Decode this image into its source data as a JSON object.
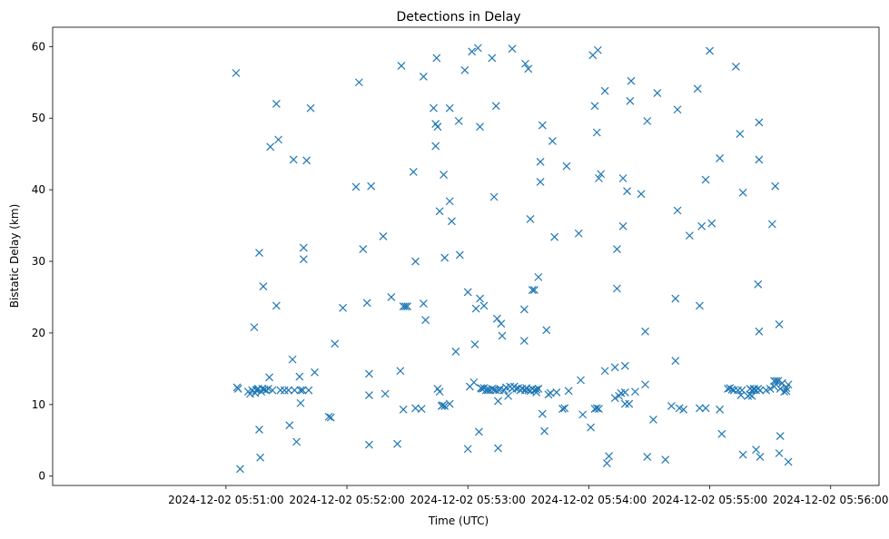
{
  "chart_data": {
    "type": "scatter",
    "title": "Detections in Delay",
    "xlabel": "Time (UTC)",
    "ylabel": "Bistatic Delay (km)",
    "marker": "x",
    "color": "#1f77b4",
    "xlim": [
      -86,
      324
    ],
    "ylim": [
      -1.3,
      62.7
    ],
    "x_unit": "seconds after 2024-12-02 05:51:00",
    "x_ticks": [
      0,
      60,
      120,
      180,
      240,
      300
    ],
    "x_tick_labels": [
      "2024-12-02 05:51:00",
      "2024-12-02 05:52:00",
      "2024-12-02 05:53:00",
      "2024-12-02 05:54:00",
      "2024-12-02 05:55:00",
      "2024-12-02 05:56:00"
    ],
    "y_ticks": [
      0,
      10,
      20,
      30,
      40,
      50,
      60
    ],
    "y_tick_labels": [
      "0",
      "10",
      "20",
      "30",
      "40",
      "50",
      "60"
    ],
    "points": [
      [
        5,
        56.3
      ],
      [
        5.5,
        12.4
      ],
      [
        6,
        12.2
      ],
      [
        7,
        1.0
      ],
      [
        11,
        11.8
      ],
      [
        12,
        11.5
      ],
      [
        13,
        12.0
      ],
      [
        14,
        20.8
      ],
      [
        14.5,
        11.6
      ],
      [
        15,
        12.0
      ],
      [
        15.5,
        12.1
      ],
      [
        16,
        12.2
      ],
      [
        16.5,
        31.2
      ],
      [
        16.5,
        6.5
      ],
      [
        17,
        2.6
      ],
      [
        17.5,
        11.8
      ],
      [
        18,
        12.2
      ],
      [
        18.5,
        26.5
      ],
      [
        19,
        12.1
      ],
      [
        20,
        12.0
      ],
      [
        21,
        12.2
      ],
      [
        21.5,
        13.8
      ],
      [
        22,
        46.0
      ],
      [
        23,
        12.0
      ],
      [
        25,
        52.0
      ],
      [
        25,
        23.8
      ],
      [
        26,
        47.0
      ],
      [
        27,
        12.0
      ],
      [
        29,
        12.0
      ],
      [
        31,
        12.0
      ],
      [
        31.5,
        7.1
      ],
      [
        33,
        16.3
      ],
      [
        33.5,
        44.2
      ],
      [
        34,
        12.0
      ],
      [
        35,
        4.8
      ],
      [
        36.5,
        13.9
      ],
      [
        37,
        12.0
      ],
      [
        37,
        10.2
      ],
      [
        38,
        12.0
      ],
      [
        38.5,
        31.9
      ],
      [
        38.5,
        30.3
      ],
      [
        40,
        44.1
      ],
      [
        41,
        12.0
      ],
      [
        42,
        51.4
      ],
      [
        44,
        14.5
      ],
      [
        51,
        8.3
      ],
      [
        52,
        8.2
      ],
      [
        54,
        18.5
      ],
      [
        58,
        23.5
      ],
      [
        64.5,
        40.4
      ],
      [
        66,
        55.0
      ],
      [
        68,
        31.7
      ],
      [
        70,
        24.2
      ],
      [
        71,
        14.3
      ],
      [
        71,
        11.3
      ],
      [
        71,
        4.4
      ],
      [
        72,
        40.5
      ],
      [
        78,
        33.5
      ],
      [
        79,
        11.5
      ],
      [
        82,
        25.0
      ],
      [
        85,
        4.5
      ],
      [
        86.5,
        14.7
      ],
      [
        87,
        57.3
      ],
      [
        88,
        9.3
      ],
      [
        88,
        23.7
      ],
      [
        89,
        23.7
      ],
      [
        90,
        23.7
      ],
      [
        93,
        42.5
      ],
      [
        94,
        30.0
      ],
      [
        94,
        9.5
      ],
      [
        97,
        9.4
      ],
      [
        98,
        55.8
      ],
      [
        98,
        24.1
      ],
      [
        99,
        21.8
      ],
      [
        103,
        51.4
      ],
      [
        104,
        49.2
      ],
      [
        104,
        46.1
      ],
      [
        104.5,
        58.4
      ],
      [
        105,
        48.8
      ],
      [
        105,
        12.2
      ],
      [
        106,
        37.0
      ],
      [
        106,
        11.8
      ],
      [
        107,
        9.8
      ],
      [
        107.5,
        9.9
      ],
      [
        108,
        42.1
      ],
      [
        108.5,
        30.5
      ],
      [
        108.5,
        9.8
      ],
      [
        111,
        38.4
      ],
      [
        111,
        51.4
      ],
      [
        111,
        10.1
      ],
      [
        112,
        35.6
      ],
      [
        114,
        17.4
      ],
      [
        115.5,
        49.6
      ],
      [
        116,
        30.9
      ],
      [
        118.5,
        56.7
      ],
      [
        120,
        3.8
      ],
      [
        120,
        25.7
      ],
      [
        121,
        12.5
      ],
      [
        122,
        59.3
      ],
      [
        123,
        13.1
      ],
      [
        123.5,
        18.4
      ],
      [
        124,
        23.4
      ],
      [
        125,
        59.8
      ],
      [
        125.5,
        6.2
      ],
      [
        126,
        48.8
      ],
      [
        126,
        24.8
      ],
      [
        126.5,
        12.3
      ],
      [
        127,
        12.2
      ],
      [
        128,
        23.8
      ],
      [
        128,
        12.3
      ],
      [
        129,
        12.0
      ],
      [
        130,
        12.0
      ],
      [
        131,
        12.0
      ],
      [
        132,
        58.4
      ],
      [
        132,
        12.2
      ],
      [
        133,
        39.0
      ],
      [
        133,
        12.1
      ],
      [
        134,
        51.7
      ],
      [
        134,
        12.0
      ],
      [
        134.5,
        22.0
      ],
      [
        135,
        10.5
      ],
      [
        135,
        3.9
      ],
      [
        135.5,
        12.0
      ],
      [
        136,
        12.2
      ],
      [
        136.5,
        21.3
      ],
      [
        137,
        19.6
      ],
      [
        138,
        12.0
      ],
      [
        139,
        12.4
      ],
      [
        140,
        11.2
      ],
      [
        141,
        12.5
      ],
      [
        142,
        59.7
      ],
      [
        142,
        12.2
      ],
      [
        143,
        12.5
      ],
      [
        144,
        12.2
      ],
      [
        145,
        12.3
      ],
      [
        146,
        12.0
      ],
      [
        147,
        12.2
      ],
      [
        148,
        23.3
      ],
      [
        148,
        18.9
      ],
      [
        148.5,
        57.6
      ],
      [
        148.5,
        12.0
      ],
      [
        149,
        12.3
      ],
      [
        150,
        56.9
      ],
      [
        150,
        12.0
      ],
      [
        151,
        11.9
      ],
      [
        151,
        35.9
      ],
      [
        152,
        12.2
      ],
      [
        152,
        26.0
      ],
      [
        153,
        12.0
      ],
      [
        153,
        26.0
      ],
      [
        154,
        11.7
      ],
      [
        154,
        12.1
      ],
      [
        155,
        12.2
      ],
      [
        155,
        27.8
      ],
      [
        156,
        43.9
      ],
      [
        156,
        41.1
      ],
      [
        157,
        49.0
      ],
      [
        157,
        8.7
      ],
      [
        158,
        6.3
      ],
      [
        159,
        20.4
      ],
      [
        160,
        11.4
      ],
      [
        161,
        11.6
      ],
      [
        162,
        46.8
      ],
      [
        163,
        33.4
      ],
      [
        164,
        11.7
      ],
      [
        167,
        9.4
      ],
      [
        168,
        9.5
      ],
      [
        169,
        43.3
      ],
      [
        170,
        11.9
      ],
      [
        175,
        33.9
      ],
      [
        176,
        13.4
      ],
      [
        177,
        8.6
      ],
      [
        181,
        6.8
      ],
      [
        182,
        58.8
      ],
      [
        183,
        9.4
      ],
      [
        183,
        51.7
      ],
      [
        184,
        9.5
      ],
      [
        184,
        48.0
      ],
      [
        184.5,
        59.5
      ],
      [
        185,
        41.6
      ],
      [
        185,
        9.4
      ],
      [
        186,
        42.2
      ],
      [
        188,
        53.8
      ],
      [
        188,
        14.7
      ],
      [
        189,
        1.8
      ],
      [
        190,
        2.8
      ],
      [
        193,
        10.9
      ],
      [
        193,
        15.2
      ],
      [
        194,
        26.2
      ],
      [
        194,
        31.7
      ],
      [
        195,
        11.2
      ],
      [
        196,
        11.6
      ],
      [
        197,
        34.9
      ],
      [
        197,
        41.6
      ],
      [
        198,
        11.7
      ],
      [
        198,
        10.1
      ],
      [
        198,
        15.4
      ],
      [
        199,
        39.8
      ],
      [
        200,
        10.1
      ],
      [
        200.5,
        52.4
      ],
      [
        201,
        55.2
      ],
      [
        203,
        11.8
      ],
      [
        206,
        39.4
      ],
      [
        208,
        20.2
      ],
      [
        208,
        12.8
      ],
      [
        209,
        49.6
      ],
      [
        209,
        2.7
      ],
      [
        212,
        7.9
      ],
      [
        214,
        53.5
      ],
      [
        218,
        2.3
      ],
      [
        221,
        9.8
      ],
      [
        223,
        16.1
      ],
      [
        223,
        24.8
      ],
      [
        224,
        51.2
      ],
      [
        224,
        37.1
      ],
      [
        225,
        9.5
      ],
      [
        227,
        9.3
      ],
      [
        230,
        33.6
      ],
      [
        234,
        54.1
      ],
      [
        235,
        23.8
      ],
      [
        235,
        9.5
      ],
      [
        236,
        34.9
      ],
      [
        238,
        41.4
      ],
      [
        238,
        9.5
      ],
      [
        240,
        59.4
      ],
      [
        241,
        35.3
      ],
      [
        245,
        44.4
      ],
      [
        245,
        9.3
      ],
      [
        246,
        5.9
      ],
      [
        249,
        12.2
      ],
      [
        250,
        12.3
      ],
      [
        251,
        12.1
      ],
      [
        252,
        12.0
      ],
      [
        253,
        57.2
      ],
      [
        254,
        12.0
      ],
      [
        255,
        47.8
      ],
      [
        255.5,
        11.3
      ],
      [
        256,
        12.0
      ],
      [
        256.5,
        39.6
      ],
      [
        256.5,
        3.0
      ],
      [
        259,
        11.2
      ],
      [
        260,
        11.4
      ],
      [
        260,
        12.2
      ],
      [
        261,
        12.0
      ],
      [
        261,
        11.2
      ],
      [
        262,
        12.2
      ],
      [
        262,
        12.1
      ],
      [
        263,
        12.0
      ],
      [
        263,
        3.7
      ],
      [
        264,
        12.2
      ],
      [
        264,
        26.8
      ],
      [
        264.5,
        49.4
      ],
      [
        264.5,
        44.2
      ],
      [
        264.5,
        20.2
      ],
      [
        265,
        12.0
      ],
      [
        265,
        2.7
      ],
      [
        268,
        12.0
      ],
      [
        270,
        12.2
      ],
      [
        271,
        35.2
      ],
      [
        272,
        12.5
      ],
      [
        272,
        13.3
      ],
      [
        272.5,
        40.5
      ],
      [
        273,
        13.3
      ],
      [
        274,
        13.3
      ],
      [
        274.5,
        21.2
      ],
      [
        274.5,
        3.2
      ],
      [
        275,
        12.2
      ],
      [
        275,
        5.6
      ],
      [
        276,
        13.0
      ],
      [
        277,
        11.8
      ],
      [
        278,
        12.3
      ],
      [
        278,
        11.9
      ],
      [
        279,
        12.8
      ],
      [
        279,
        2.0
      ]
    ]
  }
}
